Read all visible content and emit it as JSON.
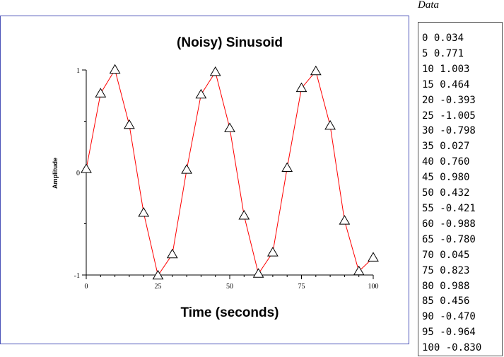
{
  "data_panel": {
    "caption": "Data",
    "lines": [
      "0 0.034",
      "5 0.771",
      "10 1.003",
      "15 0.464",
      "20 -0.393",
      "25 -1.005",
      "30 -0.798",
      "35 0.027",
      "40 0.760",
      "45 0.980",
      "50 0.432",
      "55 -0.421",
      "60 -0.988",
      "65 -0.780",
      "70 0.045",
      "75 0.823",
      "80 0.988",
      "85 0.456",
      "90 -0.470",
      "95 -0.964",
      "100 -0.830"
    ]
  },
  "chart_data": {
    "type": "line",
    "title": "(Noisy) Sinusoid",
    "xlabel": "Time (seconds)",
    "ylabel": "Amplitude",
    "xlim": [
      0,
      100
    ],
    "ylim": [
      -1,
      1
    ],
    "x_ticks": [
      0,
      25,
      50,
      75,
      100
    ],
    "x_tick_labels": [
      "0",
      "25",
      "50",
      "75",
      "100"
    ],
    "x_minor_ticks": [
      5,
      10,
      15,
      20,
      30,
      35,
      40,
      45,
      55,
      60,
      65,
      70,
      80,
      85,
      90,
      95
    ],
    "y_ticks": [
      -1,
      0,
      1
    ],
    "y_tick_labels": [
      "-1",
      "0",
      "1"
    ],
    "y_minor_ticks": [
      -0.5,
      0.5
    ],
    "grid": false,
    "legend": "none",
    "line_color": "#ff0000",
    "marker": "open-triangle",
    "x": [
      0,
      5,
      10,
      15,
      20,
      25,
      30,
      35,
      40,
      45,
      50,
      55,
      60,
      65,
      70,
      75,
      80,
      85,
      90,
      95,
      100
    ],
    "y": [
      0.034,
      0.771,
      1.003,
      0.464,
      -0.393,
      -1.005,
      -0.798,
      0.027,
      0.76,
      0.98,
      0.432,
      -0.421,
      -0.988,
      -0.78,
      0.045,
      0.823,
      0.988,
      0.456,
      -0.47,
      -0.964,
      -0.83
    ]
  }
}
